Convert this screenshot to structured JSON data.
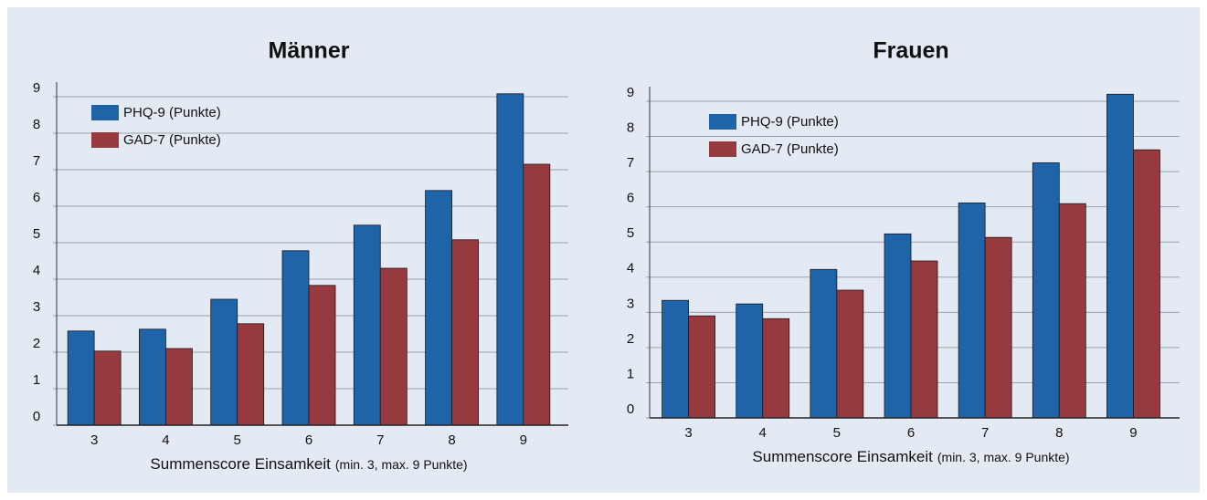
{
  "chart_data": [
    {
      "type": "bar",
      "title": "Männer",
      "categories": [
        "3",
        "4",
        "5",
        "6",
        "7",
        "8",
        "9"
      ],
      "series": [
        {
          "name": "PHQ-9 (Punkte)",
          "color": "#1f63a8",
          "values": [
            2.58,
            2.63,
            3.45,
            4.78,
            5.48,
            6.43,
            9.08
          ]
        },
        {
          "name": "GAD-7 (Punkte)",
          "color": "#963a40",
          "values": [
            2.03,
            2.1,
            2.78,
            3.83,
            4.3,
            5.08,
            7.15
          ]
        }
      ],
      "x_label": "Summenscore Einsamkeit",
      "x_label_note": "(min. 3, max. 9 Punkte)",
      "ylim": [
        0,
        9
      ],
      "yticks": [
        0,
        1,
        2,
        3,
        4,
        5,
        6,
        7,
        8,
        9
      ],
      "grid": true,
      "legend": "upper left"
    },
    {
      "type": "bar",
      "title": "Frauen",
      "categories": [
        "3",
        "4",
        "5",
        "6",
        "7",
        "8",
        "9"
      ],
      "series": [
        {
          "name": "PHQ-9 (Punkte)",
          "color": "#1f63a8",
          "values": [
            3.34,
            3.24,
            4.22,
            5.23,
            6.11,
            7.25,
            9.2
          ]
        },
        {
          "name": "GAD-7 (Punkte)",
          "color": "#963a40",
          "values": [
            2.9,
            2.82,
            3.63,
            4.46,
            5.13,
            6.09,
            7.62
          ]
        }
      ],
      "x_label": "Summenscore Einsamkeit",
      "x_label_note": "(min. 3, max. 9 Punkte)",
      "ylim": [
        0,
        9
      ],
      "yticks": [
        0,
        1,
        2,
        3,
        4,
        5,
        6,
        7,
        8,
        9
      ],
      "grid": true,
      "legend": "upper left"
    }
  ]
}
